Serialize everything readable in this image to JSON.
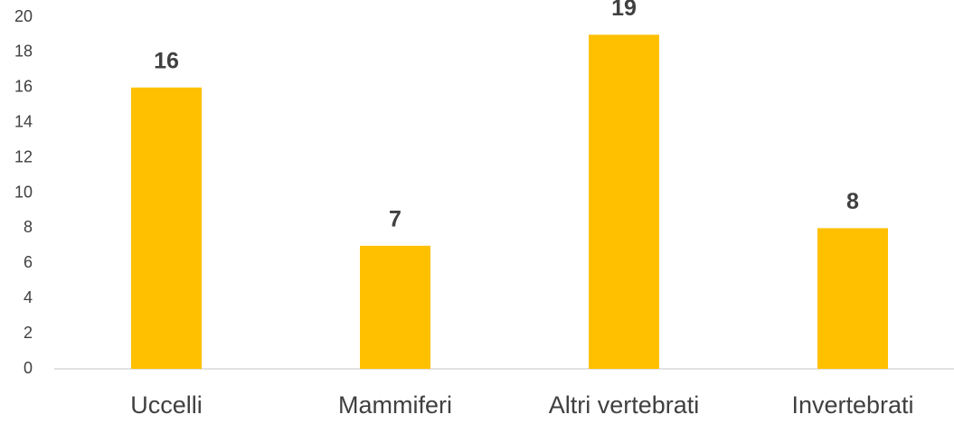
{
  "chart_data": {
    "type": "bar",
    "categories": [
      "Uccelli",
      "Mammiferi",
      "Altri vertebrati",
      "Invertebrati"
    ],
    "values": [
      16,
      7,
      19,
      8
    ],
    "color": "#FFC000",
    "ylim": [
      0,
      20
    ],
    "yticks": [
      0,
      2,
      4,
      6,
      8,
      10,
      12,
      14,
      16,
      18,
      20
    ],
    "grid": false,
    "data_labels": true
  }
}
